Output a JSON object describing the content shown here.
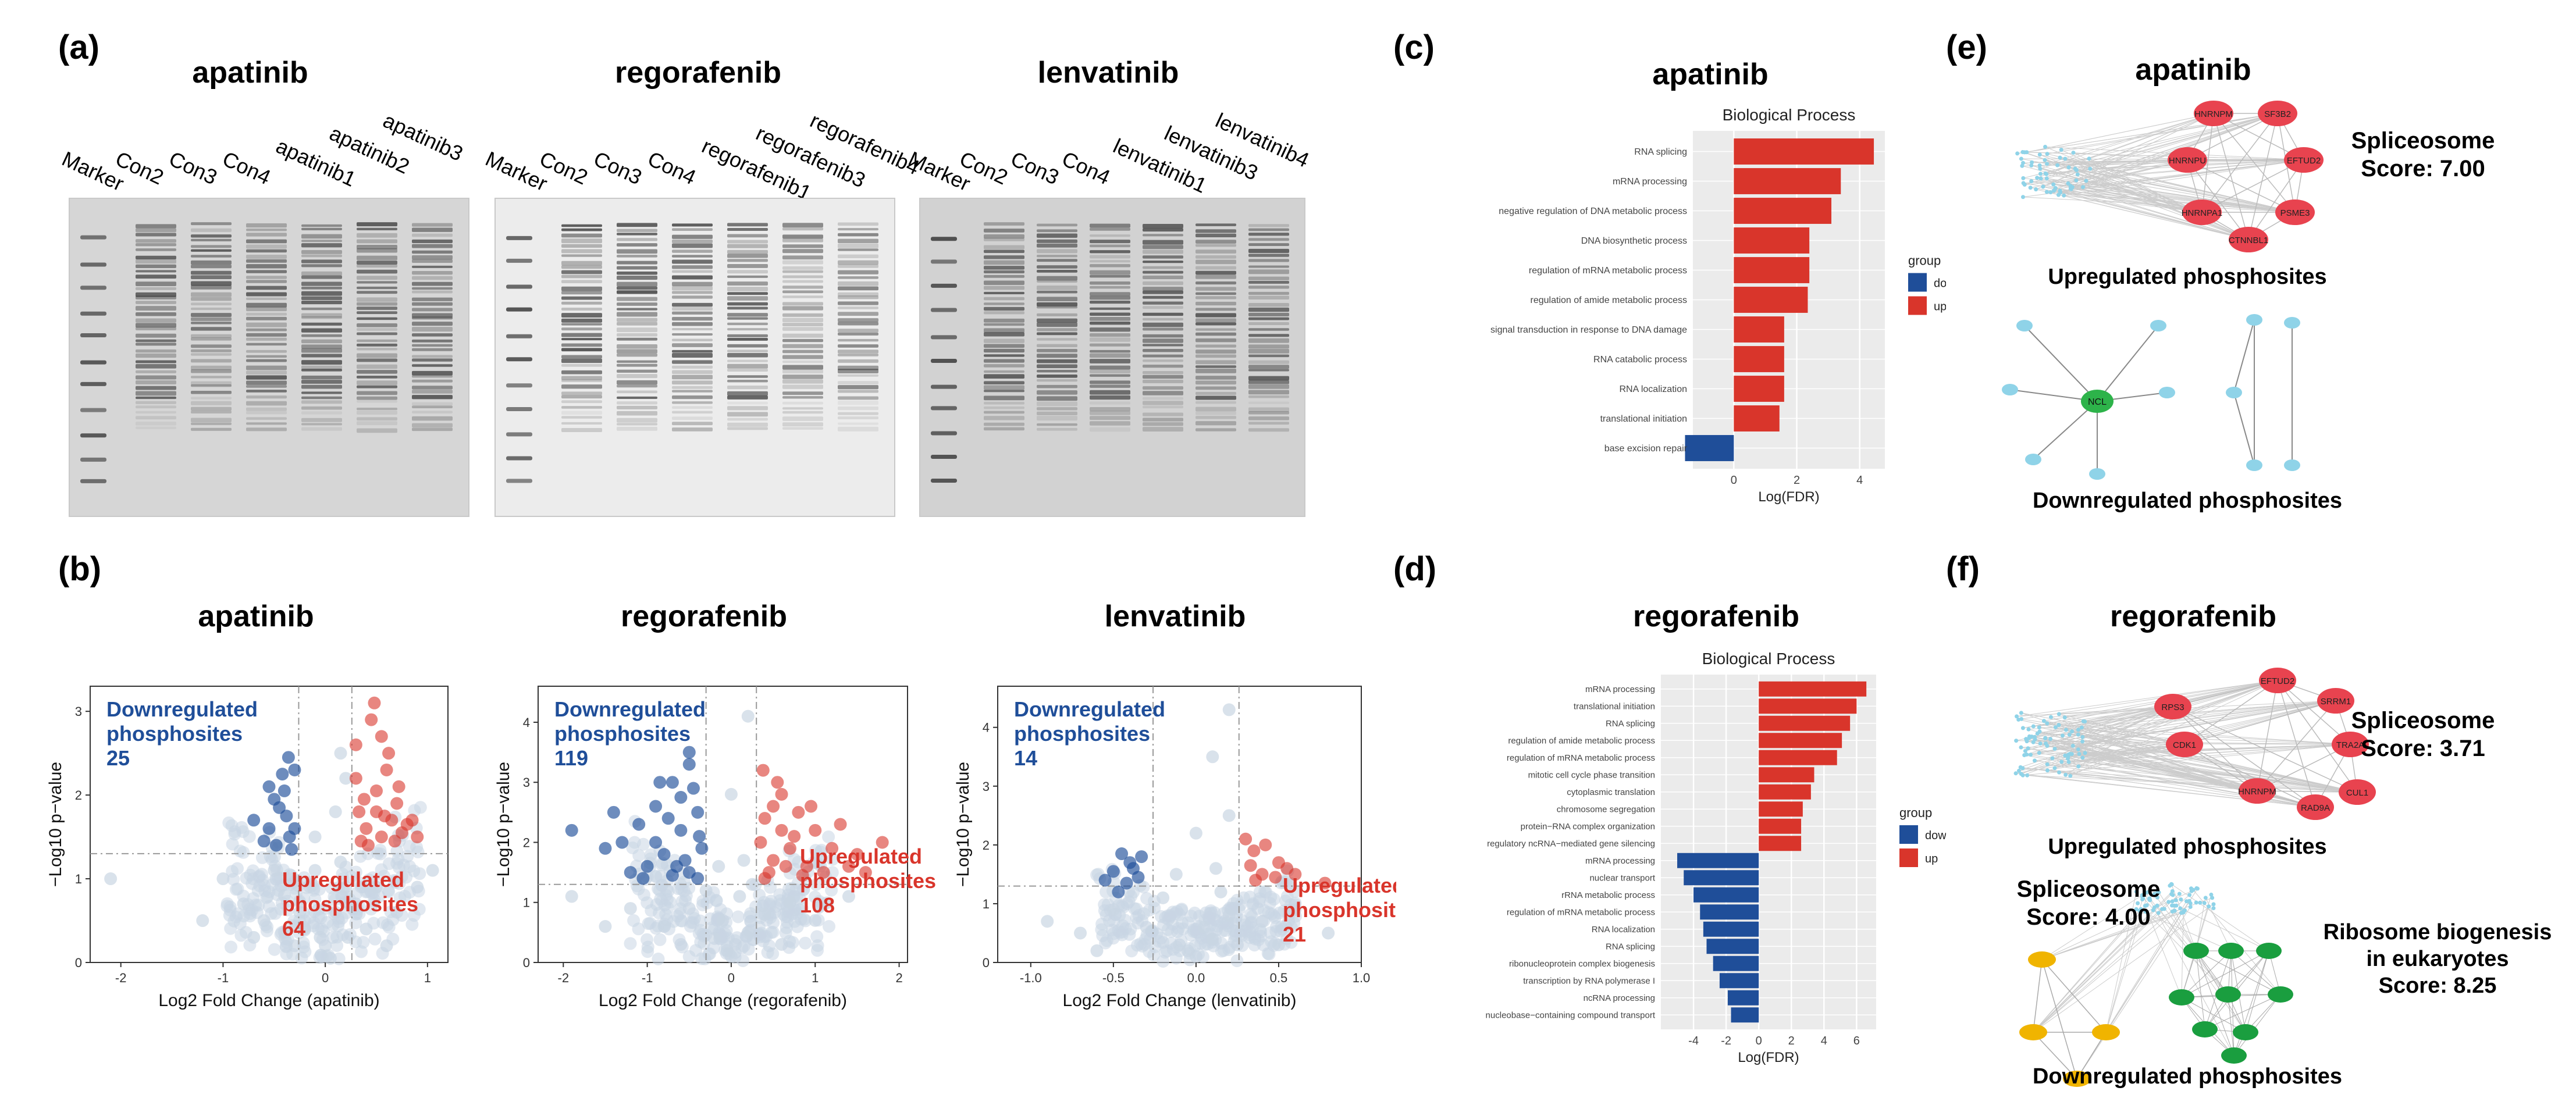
{
  "panel_labels": [
    "(a)",
    "(b)",
    "(c)",
    "(d)",
    "(e)",
    "(f)"
  ],
  "panel_a": {
    "blots": [
      {
        "title": "apatinib",
        "lanes": [
          "Marker",
          "Con2",
          "Con3",
          "Con4",
          "apatinib1",
          "apatinib2",
          "apatinib3"
        ]
      },
      {
        "title": "regorafenib",
        "lanes": [
          "Marker",
          "Con2",
          "Con3",
          "Con4",
          "regorafenib1",
          "regorafenib3",
          "regorafenib4"
        ]
      },
      {
        "title": "lenvatinib",
        "lanes": [
          "Marker",
          "Con2",
          "Con3",
          "Con4",
          "lenvatinib1",
          "lenvatinib3",
          "lenvatinib4"
        ]
      }
    ]
  },
  "colors": {
    "down": "#1f4e99",
    "up": "#d9352b",
    "ns": "#c9d6e3",
    "spliceosome": "#e8434f",
    "down_node": "#8fd3e8",
    "hub_ncl": "#2db34a",
    "ribosome": "#1a9e3f",
    "spliceosome_f": "#f0b400"
  },
  "chart_data": [
    {
      "type": "scatter",
      "panel": "(b)",
      "title": "apatinib",
      "xlabel": "Log2 Fold Change (apatinib)",
      "ylabel": "−Log10 p−value",
      "xlim": [
        -2.3,
        1.2
      ],
      "ylim": [
        0,
        3.3
      ],
      "xticks": [
        "-2",
        "-1",
        "0",
        "1"
      ],
      "yticks": [
        "0",
        "1",
        "2",
        "3"
      ],
      "down_label": [
        "Downregulated",
        "phosphosites",
        "25"
      ],
      "up_label": [
        "Upregulated",
        "phosphosites",
        "64"
      ],
      "thresholds": {
        "x": [
          -0.26,
          0.26
        ],
        "y": 1.3
      },
      "down_points": [
        [
          -0.45,
          1.85
        ],
        [
          -0.4,
          2.05
        ],
        [
          -0.55,
          1.6
        ],
        [
          -0.35,
          1.5
        ],
        [
          -0.6,
          1.45
        ],
        [
          -0.3,
          2.3
        ],
        [
          -0.42,
          2.25
        ],
        [
          -0.5,
          1.95
        ],
        [
          -0.38,
          1.75
        ],
        [
          -0.33,
          1.35
        ],
        [
          -0.7,
          1.7
        ],
        [
          -0.48,
          1.4
        ],
        [
          -0.36,
          2.45
        ],
        [
          -0.55,
          2.1
        ],
        [
          -0.3,
          1.6
        ]
      ],
      "up_points": [
        [
          0.3,
          2.6
        ],
        [
          0.45,
          2.9
        ],
        [
          0.55,
          2.7
        ],
        [
          0.6,
          2.3
        ],
        [
          0.7,
          1.9
        ],
        [
          0.8,
          1.65
        ],
        [
          0.9,
          1.5
        ],
        [
          0.5,
          1.8
        ],
        [
          0.4,
          1.6
        ],
        [
          0.35,
          1.45
        ],
        [
          0.65,
          1.7
        ],
        [
          0.75,
          1.55
        ],
        [
          0.3,
          2.2
        ],
        [
          0.5,
          2.05
        ],
        [
          0.42,
          1.4
        ],
        [
          0.58,
          1.75
        ],
        [
          0.72,
          2.1
        ],
        [
          0.85,
          1.7
        ],
        [
          0.38,
          1.95
        ],
        [
          0.68,
          1.45
        ],
        [
          0.62,
          2.5
        ],
        [
          0.48,
          3.1
        ],
        [
          0.33,
          1.8
        ],
        [
          0.55,
          1.5
        ]
      ],
      "ns_points": [
        [
          -2.1,
          1.0
        ],
        [
          -1.0,
          1.0
        ],
        [
          -0.8,
          0.7
        ],
        [
          -0.6,
          0.5
        ],
        [
          -0.4,
          0.8
        ],
        [
          -0.2,
          0.4
        ],
        [
          0.0,
          0.2
        ],
        [
          0.1,
          0.6
        ],
        [
          0.2,
          0.9
        ],
        [
          -0.1,
          1.1
        ],
        [
          0.15,
          1.2
        ],
        [
          -0.25,
          0.6
        ],
        [
          0.05,
          0.05
        ],
        [
          -0.05,
          0.3
        ],
        [
          0.22,
          0.3
        ],
        [
          -0.15,
          0.9
        ],
        [
          0.3,
          0.7
        ],
        [
          0.5,
          0.9
        ],
        [
          0.7,
          0.6
        ],
        [
          0.9,
          0.9
        ],
        [
          -0.5,
          1.1
        ],
        [
          -0.7,
          0.3
        ],
        [
          0.4,
          0.4
        ],
        [
          0.6,
          0.2
        ],
        [
          -0.3,
          0.2
        ],
        [
          0.1,
          1.8
        ],
        [
          0.2,
          2.2
        ],
        [
          -0.1,
          1.5
        ],
        [
          0.15,
          2.5
        ],
        [
          1.05,
          1.1
        ],
        [
          -1.2,
          0.5
        ]
      ]
    },
    {
      "type": "scatter",
      "panel": "(b)",
      "title": "regorafenib",
      "xlabel": "Log2 Fold Change (regorafenib)",
      "ylabel": "−Log10 p−value",
      "xlim": [
        -2.3,
        2.1
      ],
      "ylim": [
        0,
        4.6
      ],
      "xticks": [
        "-2",
        "-1",
        "0",
        "1",
        "2"
      ],
      "yticks": [
        "0",
        "1",
        "2",
        "3",
        "4"
      ],
      "down_label": [
        "Downregulated",
        "phosphosites",
        "119"
      ],
      "up_label": [
        "Upregulated",
        "phosphosites",
        "108"
      ],
      "thresholds": {
        "x": [
          -0.3,
          0.3
        ],
        "y": 1.3
      },
      "down_points": [
        [
          -0.5,
          3.3
        ],
        [
          -0.7,
          3.0
        ],
        [
          -0.9,
          2.6
        ],
        [
          -1.1,
          2.3
        ],
        [
          -1.3,
          2.0
        ],
        [
          -0.6,
          2.2
        ],
        [
          -0.4,
          2.5
        ],
        [
          -0.8,
          1.8
        ],
        [
          -1.0,
          1.6
        ],
        [
          -0.5,
          1.5
        ],
        [
          -0.35,
          1.9
        ],
        [
          -1.5,
          1.9
        ],
        [
          -1.9,
          2.2
        ],
        [
          -0.45,
          2.9
        ],
        [
          -0.75,
          2.4
        ],
        [
          -1.2,
          1.5
        ],
        [
          -0.55,
          1.7
        ],
        [
          -0.9,
          2.0
        ],
        [
          -0.4,
          1.4
        ],
        [
          -0.65,
          1.6
        ],
        [
          -1.4,
          2.5
        ],
        [
          -0.5,
          3.5
        ],
        [
          -0.85,
          3.0
        ],
        [
          -0.38,
          2.1
        ],
        [
          -1.05,
          1.4
        ],
        [
          -0.7,
          1.45
        ],
        [
          -0.6,
          2.75
        ]
      ],
      "up_points": [
        [
          0.4,
          2.4
        ],
        [
          0.6,
          2.8
        ],
        [
          0.8,
          2.5
        ],
        [
          1.0,
          2.2
        ],
        [
          1.2,
          1.9
        ],
        [
          1.5,
          1.8
        ],
        [
          1.8,
          2.0
        ],
        [
          0.5,
          1.7
        ],
        [
          0.7,
          1.9
        ],
        [
          0.9,
          1.6
        ],
        [
          0.35,
          2.0
        ],
        [
          0.45,
          1.5
        ],
        [
          1.1,
          1.5
        ],
        [
          1.3,
          2.3
        ],
        [
          0.55,
          3.0
        ],
        [
          0.75,
          2.1
        ],
        [
          0.95,
          2.6
        ],
        [
          0.4,
          1.4
        ],
        [
          0.65,
          1.6
        ],
        [
          0.85,
          1.45
        ],
        [
          1.6,
          1.5
        ],
        [
          0.5,
          2.6
        ],
        [
          0.38,
          3.2
        ],
        [
          1.4,
          1.6
        ],
        [
          0.6,
          2.2
        ]
      ],
      "ns_points": [
        [
          -1.9,
          1.1
        ],
        [
          -1.2,
          0.9
        ],
        [
          -0.8,
          0.6
        ],
        [
          -0.5,
          0.9
        ],
        [
          -0.2,
          0.4
        ],
        [
          0.0,
          0.1
        ],
        [
          0.2,
          0.5
        ],
        [
          0.4,
          0.8
        ],
        [
          0.7,
          1.0
        ],
        [
          1.0,
          0.7
        ],
        [
          -0.3,
          1.2
        ],
        [
          0.1,
          1.1
        ],
        [
          -0.1,
          0.7
        ],
        [
          0.25,
          1.3
        ],
        [
          -0.6,
          0.3
        ],
        [
          0.6,
          0.3
        ],
        [
          1.4,
          1.1
        ],
        [
          -1.5,
          0.6
        ],
        [
          0.05,
          0.3
        ],
        [
          -0.05,
          0.2
        ],
        [
          0.15,
          1.7
        ],
        [
          -0.15,
          1.6
        ],
        [
          0.0,
          2.8
        ],
        [
          0.2,
          4.1
        ]
      ]
    },
    {
      "type": "scatter",
      "panel": "(b)",
      "title": "lenvatinib",
      "xlabel": "Log2 Fold Change (lenvatinib)",
      "ylabel": "−Log10 p−value",
      "xlim": [
        -1.2,
        1.0
      ],
      "ylim": [
        0,
        4.7
      ],
      "xticks": [
        "-1.0",
        "-0.5",
        "0.0",
        "0.5",
        "1.0"
      ],
      "yticks": [
        "0",
        "1",
        "2",
        "3",
        "4"
      ],
      "down_label": [
        "Downregulated",
        "phosphosites",
        "14"
      ],
      "up_label": [
        "Upregulated",
        "phosphosites",
        "21"
      ],
      "thresholds": {
        "x": [
          -0.26,
          0.26
        ],
        "y": 1.3
      },
      "down_points": [
        [
          -0.45,
          1.85
        ],
        [
          -0.4,
          1.7
        ],
        [
          -0.5,
          1.55
        ],
        [
          -0.35,
          1.45
        ],
        [
          -0.42,
          1.35
        ],
        [
          -0.55,
          1.4
        ],
        [
          -0.38,
          1.6
        ],
        [
          -0.47,
          1.2
        ],
        [
          -0.33,
          1.8
        ]
      ],
      "up_points": [
        [
          0.3,
          2.1
        ],
        [
          0.35,
          1.9
        ],
        [
          0.42,
          2.0
        ],
        [
          0.5,
          1.7
        ],
        [
          0.55,
          1.6
        ],
        [
          0.6,
          1.5
        ],
        [
          0.4,
          1.5
        ],
        [
          0.33,
          1.65
        ],
        [
          0.48,
          1.45
        ],
        [
          0.78,
          1.35
        ],
        [
          0.36,
          1.4
        ]
      ],
      "ns_points": [
        [
          -0.9,
          0.7
        ],
        [
          -0.7,
          0.5
        ],
        [
          -0.5,
          0.9
        ],
        [
          -0.3,
          0.6
        ],
        [
          -0.1,
          0.3
        ],
        [
          0.0,
          0.1
        ],
        [
          0.1,
          0.4
        ],
        [
          0.2,
          0.8
        ],
        [
          0.4,
          0.7
        ],
        [
          0.6,
          0.9
        ],
        [
          0.8,
          0.5
        ],
        [
          -0.2,
          1.1
        ],
        [
          0.15,
          1.2
        ],
        [
          -0.05,
          0.2
        ],
        [
          0.05,
          0.6
        ],
        [
          0.25,
          0.3
        ],
        [
          -0.6,
          0.2
        ],
        [
          0.5,
          0.3
        ],
        [
          0.0,
          2.2
        ],
        [
          0.12,
          1.6
        ],
        [
          -0.12,
          1.5
        ],
        [
          0.2,
          2.5
        ],
        [
          0.1,
          3.5
        ],
        [
          0.2,
          4.3
        ]
      ]
    },
    {
      "type": "bar",
      "panel": "(c)",
      "title": "Biological Process",
      "heading": "apatinib",
      "xlabel": "Log(FDR)",
      "ylabel": "",
      "xlim": [
        -1.3,
        4.8
      ],
      "xticks": [
        "0",
        "2",
        "4"
      ],
      "legend_title": "group",
      "legend": [
        "down",
        "up"
      ],
      "categories": [
        "RNA splicing",
        "mRNA processing",
        "negative regulation of DNA metabolic process",
        "DNA biosynthetic process",
        "regulation of mRNA metabolic process",
        "regulation of amide metabolic process",
        "signal transduction in response to DNA damage",
        "RNA catabolic process",
        "RNA localization",
        "translational initiation",
        "base excision repair"
      ],
      "values": [
        4.45,
        3.4,
        3.1,
        2.4,
        2.4,
        2.35,
        1.6,
        1.6,
        1.6,
        1.45,
        -1.55
      ],
      "groups": [
        "up",
        "up",
        "up",
        "up",
        "up",
        "up",
        "up",
        "up",
        "up",
        "up",
        "down"
      ]
    },
    {
      "type": "bar",
      "panel": "(d)",
      "title": "Biological Process",
      "heading": "regorafenib",
      "xlabel": "Log(FDR)",
      "ylabel": "",
      "xlim": [
        -6.0,
        7.2
      ],
      "xticks": [
        "-4",
        "-2",
        "0",
        "2",
        "4",
        "6"
      ],
      "legend_title": "group",
      "legend": [
        "down",
        "up"
      ],
      "categories": [
        "mRNA processing",
        "translational initiation",
        "RNA splicing",
        "regulation of amide metabolic process",
        "regulation of mRNA metabolic process",
        "mitotic cell cycle phase transition",
        "cytoplasmic translation",
        "chromosome segregation",
        "protein−RNA complex organization",
        "regulatory ncRNA−mediated gene silencing",
        "mRNA processing",
        "nuclear transport",
        "rRNA metabolic process",
        "regulation of mRNA metabolic process",
        "RNA localization",
        "RNA splicing",
        "ribonucleoprotein complex biogenesis",
        "transcription by RNA polymerase I",
        "ncRNA processing",
        "nucleobase−containing compound transport"
      ],
      "values": [
        6.6,
        6.0,
        5.6,
        5.1,
        4.8,
        3.4,
        3.2,
        2.7,
        2.6,
        2.6,
        -5.0,
        -4.6,
        -4.0,
        -3.6,
        -3.4,
        -3.2,
        -2.8,
        -2.4,
        -1.9,
        -1.7
      ],
      "groups": [
        "up",
        "up",
        "up",
        "up",
        "up",
        "up",
        "up",
        "up",
        "up",
        "up",
        "down",
        "down",
        "down",
        "down",
        "down",
        "down",
        "down",
        "down",
        "down",
        "down"
      ]
    }
  ],
  "panel_e": {
    "title": "apatinib",
    "nodes": [
      "HNRNPM",
      "SF3B2",
      "HNRNPU",
      "EFTUD2",
      "HNRNPA1",
      "PSME3",
      "CTNNBL1"
    ],
    "hub": "NCL",
    "score_label": [
      "Spliceosome",
      "Score: 7.00"
    ],
    "up_caption": "Upregulated phosphosites",
    "down_caption": "Downregulated phosphosites"
  },
  "panel_f": {
    "title": "regorafenib",
    "nodes": [
      "EFTUD2",
      "RPS3",
      "SRRM1",
      "CDK1",
      "TRA2A",
      "HNRNPM",
      "RAD9A",
      "CUL1"
    ],
    "score_label": [
      "Spliceosome",
      "Score: 3.71"
    ],
    "down_score_left": [
      "Spliceosome",
      "Score: 4.00"
    ],
    "down_score_right": [
      "Ribosome biogenesis",
      "in eukaryotes",
      "Score: 8.25"
    ],
    "up_caption": "Upregulated phosphosites",
    "down_caption": "Downregulated phosphosites"
  }
}
